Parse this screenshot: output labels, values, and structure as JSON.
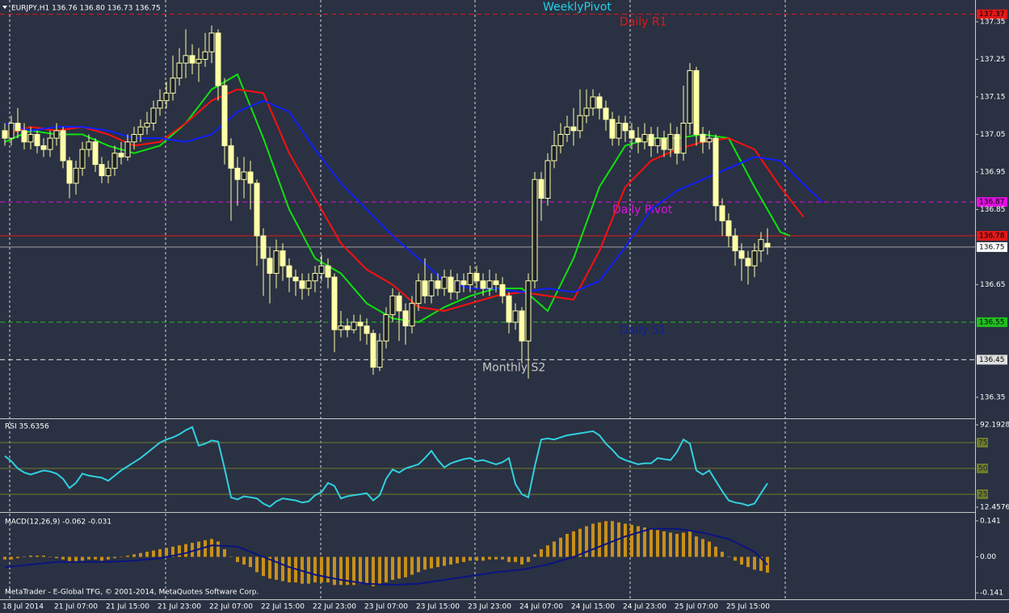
{
  "footer": "MetaTrader - E-Global TFG, © 2001-2014, MetaQuotes Software Corp.",
  "chart_data": [
    {
      "type": "candlestick",
      "title": "EURJPY,H1 136.76 136.80 136.73 136.75",
      "categories": [
        "18 Jul 2014",
        null,
        null,
        null,
        null,
        null,
        null,
        null,
        "21 Jul 07:00",
        null,
        null,
        null,
        null,
        null,
        null,
        null,
        "21 Jul 15:00",
        null,
        null,
        null,
        null,
        null,
        null,
        null,
        "21 Jul 23:00",
        null,
        null,
        null,
        null,
        null,
        null,
        null,
        "22 Jul 07:00",
        null,
        null,
        null,
        null,
        null,
        null,
        null,
        "22 Jul 15:00",
        null,
        null,
        null,
        null,
        null,
        null,
        null,
        "22 Jul 23:00",
        null,
        null,
        null,
        null,
        null,
        null,
        null,
        "23 Jul 07:00",
        null,
        null,
        null,
        null,
        null,
        null,
        null,
        "23 Jul 15:00",
        null,
        null,
        null,
        null,
        null,
        null,
        null,
        "23 Jul 23:00",
        null,
        null,
        null,
        null,
        null,
        null,
        null,
        "24 Jul 07:00",
        null,
        null,
        null,
        null,
        null,
        null,
        null,
        "24 Jul 15:00",
        null,
        null,
        null,
        null,
        null,
        null,
        null,
        "24 Jul 23:00",
        null,
        null,
        null,
        null,
        null,
        null,
        null,
        "25 Jul 07:00",
        null,
        null,
        null,
        null,
        null,
        null,
        null,
        "25 Jul 15:00",
        null,
        null,
        null,
        null,
        null,
        null
      ],
      "open": [
        137.06,
        137.04,
        137.08,
        137.06,
        137.03,
        137.05,
        137.02,
        137.01,
        137.04,
        137.06,
        136.98,
        136.92,
        136.96,
        137.01,
        137.03,
        136.97,
        136.94,
        136.96,
        137.0,
        136.99,
        137.03,
        137.05,
        137.07,
        137.08,
        137.12,
        137.14,
        137.16,
        137.2,
        137.24,
        137.26,
        137.24,
        137.25,
        137.27,
        137.32,
        137.18,
        137.02,
        136.96,
        136.93,
        136.95,
        136.92,
        136.78,
        136.72,
        136.68,
        136.74,
        136.7,
        136.67,
        136.66,
        136.64,
        136.66,
        136.68,
        136.7,
        136.67,
        136.53,
        136.54,
        136.53,
        136.55,
        136.54,
        136.52,
        136.43,
        136.5,
        136.57,
        136.62,
        136.58,
        136.54,
        136.6,
        136.66,
        136.62,
        136.66,
        136.64,
        136.67,
        136.63,
        136.66,
        136.65,
        136.68,
        136.66,
        136.64,
        136.66,
        136.65,
        136.62,
        136.55,
        136.58,
        136.5,
        136.66,
        136.93,
        136.88,
        136.98,
        137.02,
        137.05,
        137.07,
        137.06,
        137.1,
        137.12,
        137.15,
        137.12,
        137.09,
        137.04,
        137.08,
        137.06,
        137.04,
        137.03,
        137.05,
        137.02,
        137.04,
        137.01,
        137.05,
        137.0,
        137.08,
        137.22,
        137.05,
        137.03,
        137.04,
        136.86,
        136.82,
        136.78,
        136.74,
        136.72,
        136.7,
        136.74,
        136.76
      ],
      "high": [
        137.08,
        137.1,
        137.12,
        137.08,
        137.07,
        137.06,
        137.04,
        137.06,
        137.08,
        137.07,
        136.99,
        136.98,
        137.03,
        137.05,
        137.04,
        136.99,
        136.98,
        137.02,
        137.03,
        137.05,
        137.07,
        137.09,
        137.11,
        137.14,
        137.17,
        137.19,
        137.26,
        137.28,
        137.33,
        137.29,
        137.28,
        137.32,
        137.34,
        137.33,
        137.2,
        137.04,
        136.99,
        136.99,
        136.98,
        136.93,
        136.8,
        136.75,
        136.77,
        136.76,
        136.72,
        136.69,
        136.68,
        136.68,
        136.7,
        136.73,
        136.72,
        136.68,
        136.58,
        136.56,
        136.57,
        136.57,
        136.56,
        136.53,
        136.52,
        136.59,
        136.64,
        136.63,
        136.6,
        136.62,
        136.68,
        136.72,
        136.68,
        136.68,
        136.69,
        136.69,
        136.68,
        136.68,
        136.7,
        136.7,
        136.68,
        136.69,
        136.68,
        136.67,
        136.63,
        136.6,
        136.59,
        136.68,
        136.95,
        136.95,
        137.0,
        137.06,
        137.08,
        137.1,
        137.12,
        137.17,
        137.17,
        137.17,
        137.16,
        137.14,
        137.11,
        137.1,
        137.1,
        137.08,
        137.07,
        137.08,
        137.07,
        137.07,
        137.06,
        137.08,
        137.07,
        137.18,
        137.24,
        137.23,
        137.07,
        137.06,
        137.05,
        136.88,
        136.84,
        136.8,
        136.76,
        136.74,
        136.76,
        136.79,
        136.8
      ],
      "low": [
        137.02,
        137.02,
        137.04,
        137.01,
        137.01,
        137.0,
        136.99,
        136.99,
        137.02,
        136.96,
        136.88,
        136.89,
        136.94,
        136.99,
        136.95,
        136.92,
        136.92,
        136.94,
        136.97,
        136.98,
        137.01,
        137.03,
        137.05,
        137.06,
        137.1,
        137.12,
        137.14,
        137.18,
        137.2,
        137.21,
        137.19,
        137.23,
        137.24,
        137.14,
        136.97,
        136.82,
        136.86,
        136.88,
        136.85,
        136.7,
        136.62,
        136.6,
        136.64,
        136.66,
        136.63,
        136.62,
        136.61,
        136.62,
        136.63,
        136.66,
        136.64,
        136.47,
        136.51,
        136.51,
        136.52,
        136.5,
        136.49,
        136.41,
        136.42,
        136.48,
        136.55,
        136.5,
        136.49,
        136.52,
        136.58,
        136.6,
        136.6,
        136.62,
        136.62,
        136.61,
        136.61,
        136.63,
        136.63,
        136.64,
        136.62,
        136.62,
        136.63,
        136.6,
        136.52,
        136.53,
        136.44,
        136.4,
        136.64,
        136.82,
        136.86,
        136.96,
        137.0,
        137.03,
        137.02,
        137.04,
        137.08,
        137.1,
        137.09,
        137.06,
        137.02,
        137.02,
        137.03,
        137.01,
        137.0,
        137.01,
        136.99,
        137.0,
        136.99,
        136.99,
        136.97,
        136.98,
        137.05,
        137.02,
        137.0,
        137.01,
        136.82,
        136.78,
        136.75,
        136.7,
        136.66,
        136.65,
        136.67,
        136.71,
        136.73
      ],
      "close": [
        137.04,
        137.08,
        137.06,
        137.03,
        137.05,
        137.02,
        137.01,
        137.04,
        137.06,
        136.98,
        136.92,
        136.96,
        137.01,
        137.03,
        136.97,
        136.94,
        136.96,
        137.0,
        136.99,
        137.03,
        137.05,
        137.07,
        137.08,
        137.12,
        137.14,
        137.16,
        137.2,
        137.24,
        137.26,
        137.24,
        137.25,
        137.27,
        137.32,
        137.18,
        137.02,
        136.96,
        136.93,
        136.95,
        136.92,
        136.78,
        136.72,
        136.68,
        136.74,
        136.7,
        136.67,
        136.66,
        136.64,
        136.66,
        136.68,
        136.7,
        136.67,
        136.53,
        136.54,
        136.53,
        136.55,
        136.54,
        136.52,
        136.43,
        136.5,
        136.57,
        136.62,
        136.58,
        136.54,
        136.6,
        136.66,
        136.62,
        136.66,
        136.64,
        136.67,
        136.63,
        136.66,
        136.65,
        136.68,
        136.66,
        136.64,
        136.66,
        136.65,
        136.62,
        136.55,
        136.58,
        136.5,
        136.66,
        136.93,
        136.88,
        136.98,
        137.02,
        137.05,
        137.07,
        137.06,
        137.1,
        137.12,
        137.15,
        137.12,
        137.09,
        137.04,
        137.08,
        137.06,
        137.04,
        137.03,
        137.05,
        137.02,
        137.04,
        137.01,
        137.05,
        137.0,
        137.08,
        137.22,
        137.05,
        137.03,
        137.04,
        136.86,
        136.82,
        136.78,
        136.74,
        136.72,
        136.7,
        136.74,
        136.77,
        136.75
      ],
      "up_color": "#1a1f2b",
      "down_color": "#ffffa8",
      "wick_color": "#ffffa8",
      "ylim": [
        136.296,
        137.408
      ],
      "yticks": [
        137.35,
        137.25,
        137.15,
        137.05,
        136.95,
        136.85,
        136.65,
        136.35
      ],
      "series": [
        {
          "color": "#10e010",
          "x": [
            0,
            4,
            8,
            12,
            16,
            20,
            24,
            28,
            32,
            36,
            40,
            44,
            48,
            52,
            56,
            60,
            64,
            68,
            72,
            76,
            80,
            84,
            88,
            92,
            96,
            100,
            104,
            108,
            112,
            116,
            120,
            121.5
          ],
          "values": [
            137.03,
            137.06,
            137.05,
            137.05,
            137.02,
            137.0,
            137.02,
            137.08,
            137.17,
            137.21,
            137.04,
            136.85,
            136.72,
            136.68,
            136.6,
            136.56,
            136.55,
            136.59,
            136.62,
            136.64,
            136.64,
            136.58,
            136.72,
            136.91,
            137.02,
            137.04,
            137.04,
            137.05,
            137.04,
            136.91,
            136.79,
            136.78
          ]
        },
        {
          "color": "#ff1010",
          "x": [
            0,
            4,
            8,
            12,
            16,
            20,
            24,
            28,
            32,
            36,
            40,
            44,
            48,
            52,
            56,
            60,
            64,
            68,
            72,
            76,
            80,
            84,
            88,
            92,
            96,
            100,
            104,
            108,
            112,
            116,
            120,
            123.6
          ],
          "values": [
            137.05,
            137.07,
            137.06,
            137.07,
            137.05,
            137.02,
            137.03,
            137.08,
            137.14,
            137.17,
            137.16,
            137.0,
            136.88,
            136.76,
            136.69,
            136.65,
            136.59,
            136.58,
            136.6,
            136.62,
            136.63,
            136.62,
            136.61,
            136.74,
            136.91,
            136.98,
            137.01,
            137.03,
            137.04,
            137.01,
            136.91,
            136.83
          ]
        },
        {
          "color": "#1020ff",
          "x": [
            0,
            4,
            8,
            12,
            16,
            20,
            24,
            28,
            32,
            36,
            40,
            44,
            48,
            52,
            56,
            60,
            64,
            68,
            72,
            76,
            80,
            84,
            88,
            92,
            96,
            100,
            104,
            108,
            112,
            116,
            120,
            124,
            126.5
          ],
          "values": [
            137.08,
            137.06,
            137.07,
            137.07,
            137.06,
            137.04,
            137.04,
            137.03,
            137.05,
            137.11,
            137.14,
            137.11,
            137.01,
            136.92,
            136.85,
            136.78,
            136.72,
            136.66,
            136.64,
            136.64,
            136.63,
            136.64,
            136.63,
            136.66,
            136.75,
            136.85,
            136.9,
            136.93,
            136.96,
            136.99,
            136.98,
            136.91,
            136.87
          ]
        }
      ],
      "levels": [
        {
          "label": "Daily R1",
          "value": 137.37,
          "color": "#e01818",
          "text_color": "#e01818",
          "style": "dashed"
        },
        {
          "label": "Daily Pivot",
          "value": 136.87,
          "color": "#e010e0",
          "text_color": "#e010e0",
          "style": "dashed"
        },
        {
          "value": 136.78,
          "color": "#e01818",
          "style": "solid"
        },
        {
          "label": "Daily S1",
          "value": 136.55,
          "color": "#20c020",
          "text_color": "#10209a",
          "style": "dashed"
        },
        {
          "label": "Monthly S2",
          "value": 136.45,
          "color": "#e0e0e0",
          "text_color": "#c8c8c8",
          "style": "dashed"
        }
      ],
      "last_price": 136.75,
      "last_price_color": "#a0a0a0",
      "annotations": [
        {
          "text": "WeeklyPivot",
          "color": "#20d0e8"
        }
      ]
    },
    {
      "type": "line",
      "title": "RSI 35.6356",
      "color": "#30d0e0",
      "values": [
        62,
        57,
        50,
        46,
        44,
        46,
        48,
        47,
        45,
        40,
        31,
        36,
        45,
        43,
        42,
        41,
        38,
        43,
        48,
        52,
        56,
        60,
        65,
        70,
        75,
        78,
        80,
        83,
        87,
        90,
        72,
        74,
        77,
        76,
        50,
        22,
        20,
        23,
        22,
        21,
        16,
        13,
        18,
        21,
        20,
        19,
        17,
        18,
        24,
        27,
        36,
        33,
        21,
        23,
        24,
        25,
        26,
        19,
        24,
        40,
        49,
        46,
        50,
        52,
        54,
        60,
        67,
        58,
        51,
        55,
        57,
        59,
        60,
        57,
        58,
        56,
        54,
        56,
        60,
        35,
        25,
        22,
        52,
        78,
        79,
        78,
        80,
        82,
        83,
        84,
        85,
        86,
        82,
        74,
        68,
        61,
        58,
        56,
        54,
        55,
        55,
        60,
        59,
        58,
        66,
        78,
        74,
        48,
        44,
        48,
        38,
        28,
        19,
        17,
        16,
        14,
        16,
        26,
        35.6
      ],
      "ylim": [
        12.4576,
        92.1928
      ],
      "yticks": [
        92.1928,
        12.4576
      ],
      "levels": [
        75,
        50,
        25
      ],
      "level_color": "#6e7c2c"
    },
    {
      "type": "bar",
      "title": "MACD(12,26,9) -0.062 -0.031",
      "color": "#c8901a",
      "values": [
        -0.01,
        -0.01,
        -0.005,
        0.0,
        0.005,
        0.005,
        0.005,
        0.0,
        -0.005,
        -0.01,
        -0.02,
        -0.02,
        -0.015,
        -0.01,
        -0.01,
        -0.015,
        -0.01,
        -0.005,
        0.0,
        0.005,
        0.01,
        0.015,
        0.02,
        0.025,
        0.03,
        0.035,
        0.04,
        0.045,
        0.05,
        0.055,
        0.06,
        0.065,
        0.07,
        0.06,
        0.03,
        0.0,
        -0.02,
        -0.03,
        -0.04,
        -0.06,
        -0.075,
        -0.085,
        -0.09,
        -0.095,
        -0.1,
        -0.1,
        -0.105,
        -0.105,
        -0.1,
        -0.1,
        -0.1,
        -0.11,
        -0.11,
        -0.11,
        -0.11,
        -0.105,
        -0.105,
        -0.115,
        -0.11,
        -0.1,
        -0.09,
        -0.085,
        -0.08,
        -0.07,
        -0.06,
        -0.05,
        -0.045,
        -0.04,
        -0.035,
        -0.03,
        -0.025,
        -0.02,
        -0.015,
        -0.015,
        -0.015,
        -0.01,
        -0.01,
        -0.01,
        -0.02,
        -0.02,
        -0.03,
        -0.02,
        0.01,
        0.03,
        0.045,
        0.06,
        0.075,
        0.09,
        0.1,
        0.11,
        0.12,
        0.13,
        0.135,
        0.14,
        0.14,
        0.135,
        0.13,
        0.125,
        0.12,
        0.115,
        0.11,
        0.105,
        0.1,
        0.095,
        0.09,
        0.095,
        0.1,
        0.08,
        0.07,
        0.06,
        0.04,
        0.02,
        0.0,
        -0.015,
        -0.03,
        -0.04,
        -0.05,
        -0.055,
        -0.062
      ],
      "series": [
        {
          "color": "#0a1480",
          "x": [
            0,
            4,
            8,
            12,
            16,
            20,
            24,
            28,
            32,
            36,
            40,
            44,
            48,
            52,
            56,
            60,
            64,
            68,
            72,
            76,
            80,
            84,
            88,
            92,
            96,
            100,
            104,
            108,
            112,
            116,
            118
          ],
          "values": [
            -0.04,
            -0.03,
            -0.02,
            -0.02,
            -0.02,
            -0.015,
            -0.005,
            0.015,
            0.045,
            0.04,
            0.0,
            -0.04,
            -0.07,
            -0.09,
            -0.105,
            -0.11,
            -0.105,
            -0.09,
            -0.075,
            -0.06,
            -0.05,
            -0.03,
            0.0,
            0.04,
            0.08,
            0.11,
            0.11,
            0.095,
            0.07,
            0.02,
            -0.031
          ]
        }
      ],
      "ylim": [
        -0.166,
        0.166
      ],
      "yticks": [
        0.141,
        {
          "value": 0,
          "label": "0.00"
        },
        -0.141
      ]
    }
  ]
}
